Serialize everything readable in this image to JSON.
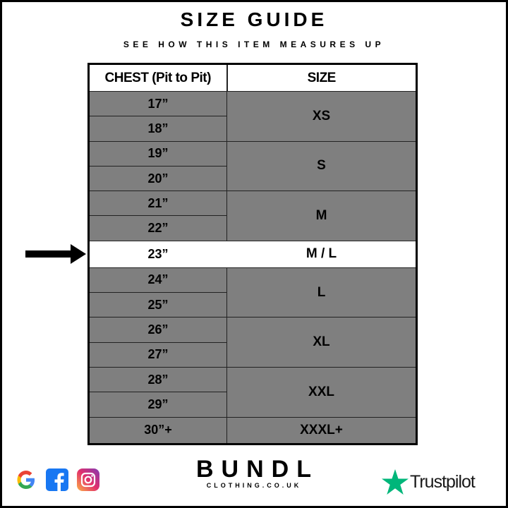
{
  "title": "SIZE GUIDE",
  "subtitle": "SEE HOW THIS ITEM MEASURES UP",
  "table": {
    "headers": [
      "CHEST (Pit to Pit)",
      "SIZE"
    ],
    "chest": [
      "17”",
      "18”",
      "19”",
      "20”",
      "21”",
      "22”",
      "23”",
      "24”",
      "25”",
      "26”",
      "27”",
      "28”",
      "29”",
      "30”+"
    ],
    "sizes": [
      "XS",
      "S",
      "M",
      "M / L",
      "L",
      "XL",
      "XXL",
      "XXXL+"
    ],
    "highlighted_row": "23”",
    "highlight_color": "#ffffff",
    "cell_color": "#7f7f7f"
  },
  "footer": {
    "social_icons": [
      "google-icon",
      "facebook-icon",
      "instagram-icon"
    ],
    "brand": "BUNDL",
    "brand_sub": "CLOTHING.CO.UK",
    "trustpilot": "Trustpilot",
    "trustpilot_color": "#00b67a"
  }
}
